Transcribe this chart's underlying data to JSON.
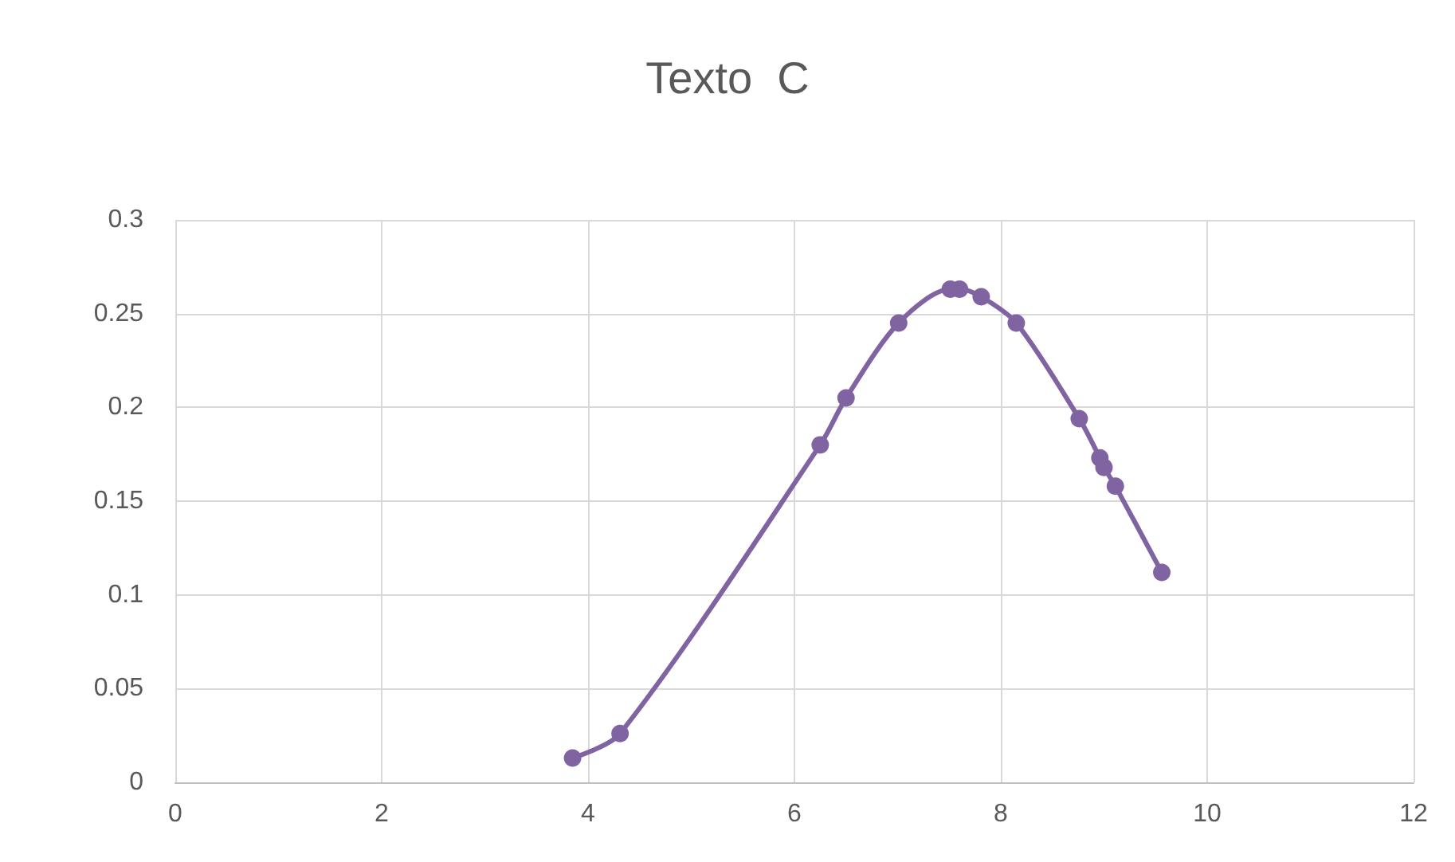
{
  "chart_data": {
    "type": "line",
    "title": "Texto  C",
    "x": [
      3.85,
      4.31,
      6.25,
      6.5,
      7.01,
      7.51,
      7.6,
      7.81,
      8.15,
      8.76,
      8.96,
      9.0,
      9.11,
      9.56
    ],
    "series": [
      {
        "color": "#8064a2",
        "values": [
          0.013,
          0.026,
          0.18,
          0.205,
          0.245,
          0.263,
          0.263,
          0.259,
          0.245,
          0.194,
          0.173,
          0.168,
          0.158,
          0.112
        ]
      }
    ],
    "xlim": [
      0,
      12
    ],
    "xticks": [
      0,
      2,
      4,
      6,
      8,
      10,
      12
    ],
    "ylim": [
      0,
      0.3
    ],
    "yticks": [
      0,
      0.05,
      0.1,
      0.15,
      0.2,
      0.25,
      0.3
    ],
    "grid": true,
    "marker": "circle",
    "line_style": "solid"
  }
}
